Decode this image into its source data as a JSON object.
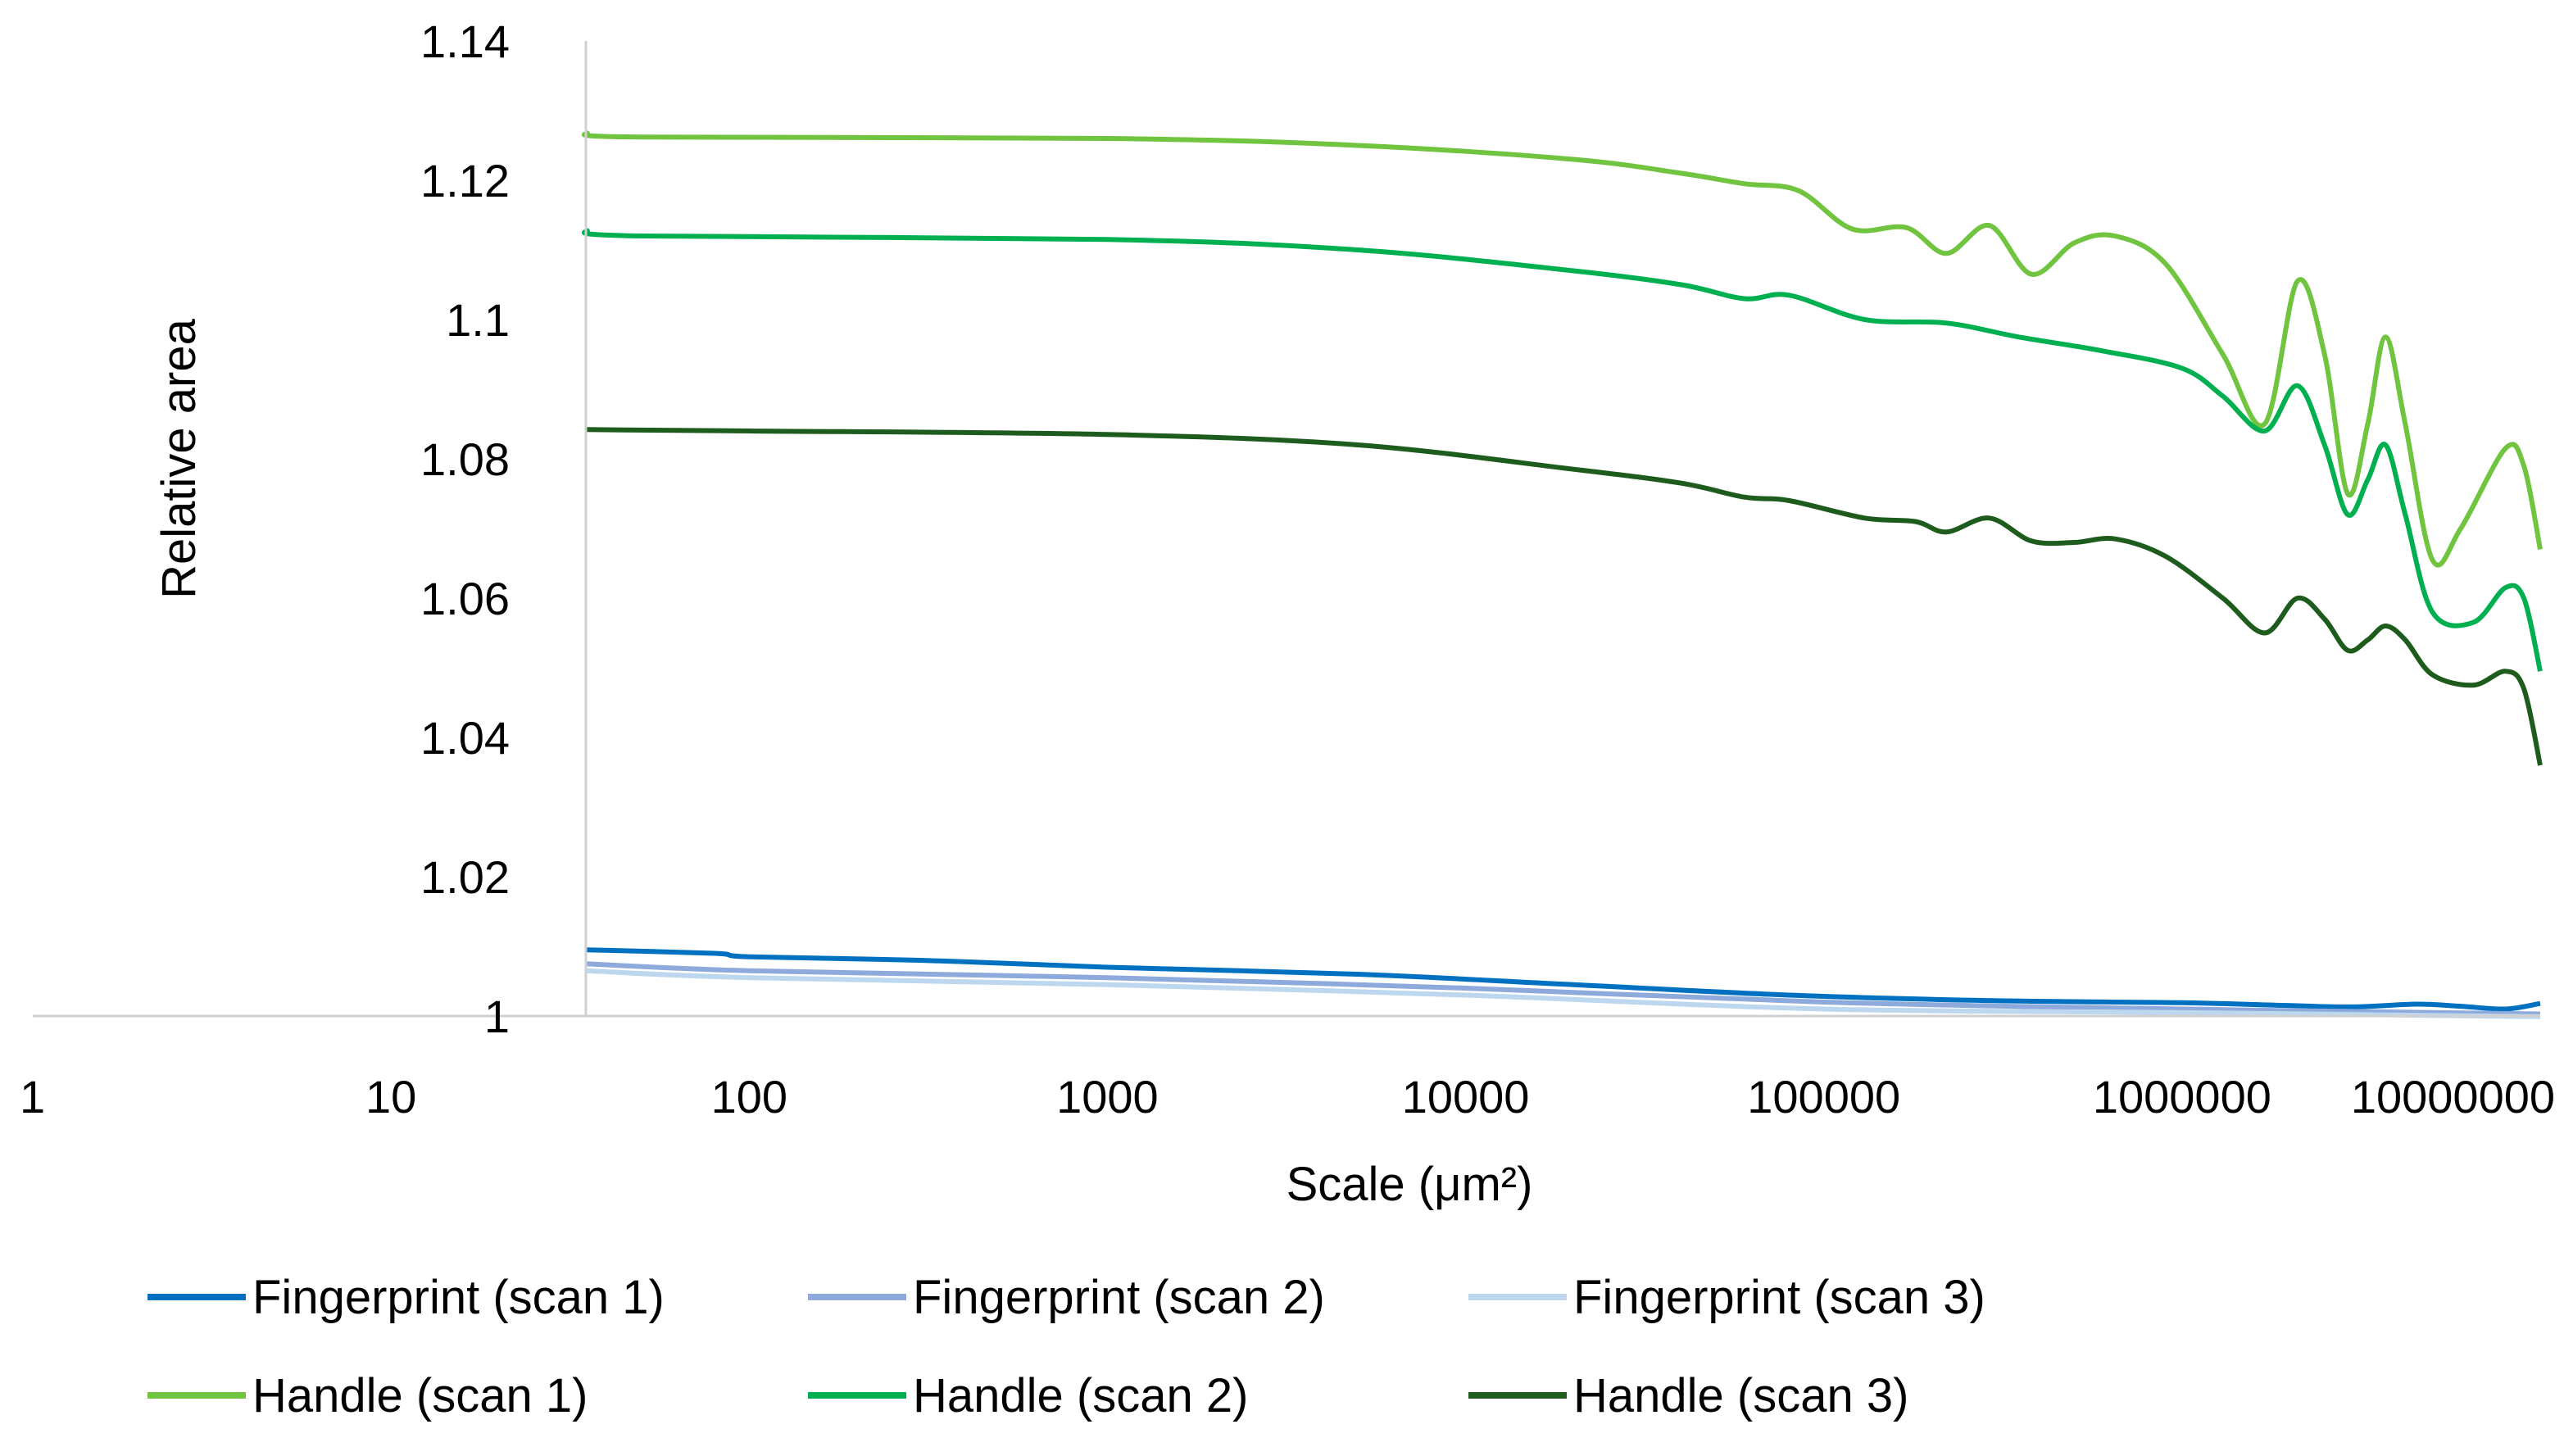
{
  "chart_data": {
    "type": "line",
    "xlabel": "Scale (μm²)",
    "ylabel": "Relative area",
    "x_scale": "log",
    "xlim": [
      1,
      10000000
    ],
    "ylim": [
      1,
      1.14
    ],
    "x_ticks": [
      "1",
      "10",
      "100",
      "1000",
      "10000",
      "100000",
      "1000000",
      "10000000"
    ],
    "y_ticks": [
      "1",
      "1.02",
      "1.04",
      "1.06",
      "1.08",
      "1.1",
      "1.12",
      "1.14"
    ],
    "grid": false,
    "legend_position": "bottom",
    "series": [
      {
        "name": "Fingerprint (scan 1)",
        "color": "#0070c0",
        "points": [
          [
            35,
            1.0095
          ],
          [
            80,
            1.009
          ],
          [
            100,
            1.0085
          ],
          [
            300,
            1.008
          ],
          [
            1000,
            1.007
          ],
          [
            5000,
            1.006
          ],
          [
            20000,
            1.0045
          ],
          [
            80000,
            1.003
          ],
          [
            300000,
            1.0022
          ],
          [
            1000000,
            1.0019
          ],
          [
            2000000,
            1.0015
          ],
          [
            3000000,
            1.0013
          ],
          [
            4500000,
            1.0017
          ],
          [
            6000000,
            1.0014
          ],
          [
            8000000,
            1.001
          ],
          [
            10000000,
            1.0018
          ]
        ]
      },
      {
        "name": "Fingerprint (scan 2)",
        "color": "#8ea9db",
        "points": [
          [
            35,
            1.0075
          ],
          [
            100,
            1.0065
          ],
          [
            1000,
            1.0055
          ],
          [
            10000,
            1.004
          ],
          [
            100000,
            1.002
          ],
          [
            1000000,
            1.001
          ],
          [
            10000000,
            1.0003
          ]
        ]
      },
      {
        "name": "Fingerprint (scan 3)",
        "color": "#bdd7ee",
        "points": [
          [
            35,
            1.0065
          ],
          [
            100,
            1.0055
          ],
          [
            1000,
            1.0045
          ],
          [
            10000,
            1.003
          ],
          [
            100000,
            1.001
          ],
          [
            1000000,
            1.0005
          ],
          [
            10000000,
            0.9999
          ]
        ]
      },
      {
        "name": "Handle (scan 1)",
        "color": "#70c43f",
        "points": [
          [
            35,
            1.1268
          ],
          [
            50,
            1.1262
          ],
          [
            1000,
            1.126
          ],
          [
            5000,
            1.125
          ],
          [
            20000,
            1.123
          ],
          [
            40000,
            1.121
          ],
          [
            60000,
            1.1195
          ],
          [
            85000,
            1.1185
          ],
          [
            120000,
            1.113
          ],
          [
            170000,
            1.1132
          ],
          [
            220000,
            1.1095
          ],
          [
            290000,
            1.1135
          ],
          [
            380000,
            1.1065
          ],
          [
            500000,
            1.111
          ],
          [
            650000,
            1.112
          ],
          [
            900000,
            1.108
          ],
          [
            1300000,
            1.095
          ],
          [
            1700000,
            1.085
          ],
          [
            2100000,
            1.1055
          ],
          [
            2500000,
            1.095
          ],
          [
            2900000,
            1.075
          ],
          [
            3300000,
            1.085
          ],
          [
            3700000,
            1.0975
          ],
          [
            4200000,
            1.085
          ],
          [
            5000000,
            1.0655
          ],
          [
            6000000,
            1.07
          ],
          [
            8000000,
            1.0815
          ],
          [
            9000000,
            1.079
          ],
          [
            10000000,
            1.067
          ]
        ]
      },
      {
        "name": "Handle (scan 2)",
        "color": "#00b050",
        "points": [
          [
            35,
            1.1128
          ],
          [
            50,
            1.112
          ],
          [
            1000,
            1.1115
          ],
          [
            5000,
            1.11
          ],
          [
            20000,
            1.107
          ],
          [
            40000,
            1.105
          ],
          [
            60000,
            1.103
          ],
          [
            80000,
            1.1035
          ],
          [
            130000,
            1.1
          ],
          [
            220000,
            1.0995
          ],
          [
            350000,
            1.0975
          ],
          [
            600000,
            1.0955
          ],
          [
            1000000,
            1.093
          ],
          [
            1300000,
            1.089
          ],
          [
            1700000,
            1.084
          ],
          [
            2100000,
            1.0905
          ],
          [
            2500000,
            1.082
          ],
          [
            2900000,
            1.072
          ],
          [
            3300000,
            1.077
          ],
          [
            3700000,
            1.082
          ],
          [
            4200000,
            1.072
          ],
          [
            5000000,
            1.058
          ],
          [
            6500000,
            1.0565
          ],
          [
            8000000,
            1.0615
          ],
          [
            9000000,
            1.06
          ],
          [
            10000000,
            1.0495
          ]
        ]
      },
      {
        "name": "Handle (scan 3)",
        "color": "#1e5c1e",
        "points": [
          [
            35,
            1.0842
          ],
          [
            100,
            1.084
          ],
          [
            1000,
            1.0835
          ],
          [
            5000,
            1.082
          ],
          [
            20000,
            1.0785
          ],
          [
            40000,
            1.0765
          ],
          [
            60000,
            1.0745
          ],
          [
            80000,
            1.074
          ],
          [
            130000,
            1.0715
          ],
          [
            180000,
            1.071
          ],
          [
            220000,
            1.0695
          ],
          [
            290000,
            1.0715
          ],
          [
            380000,
            1.0682
          ],
          [
            500000,
            1.068
          ],
          [
            650000,
            1.0685
          ],
          [
            900000,
            1.066
          ],
          [
            1300000,
            1.06
          ],
          [
            1700000,
            1.055
          ],
          [
            2100000,
            1.06
          ],
          [
            2500000,
            1.057
          ],
          [
            2900000,
            1.0525
          ],
          [
            3300000,
            1.054
          ],
          [
            3700000,
            1.056
          ],
          [
            4200000,
            1.054
          ],
          [
            5000000,
            1.049
          ],
          [
            6500000,
            1.0475
          ],
          [
            8000000,
            1.0495
          ],
          [
            9000000,
            1.047
          ],
          [
            10000000,
            1.036
          ]
        ]
      }
    ]
  }
}
